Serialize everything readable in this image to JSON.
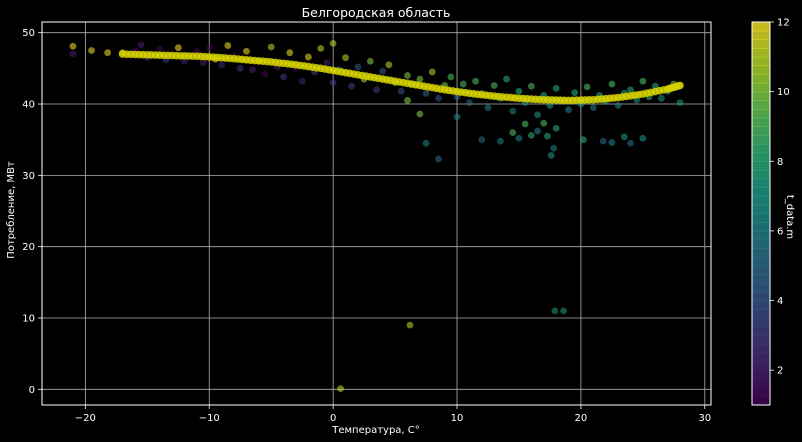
{
  "chart_data": {
    "type": "scatter",
    "title": "Белгородская область",
    "xlabel": "Температура, C°",
    "ylabel": "Потребление, МВт",
    "xlim": [
      -23.5,
      30.5
    ],
    "ylim": [
      -2.2,
      51.5
    ],
    "xticks": [
      -20,
      -10,
      0,
      10,
      20,
      30
    ],
    "xtick_labels": [
      "−20",
      "−10",
      "0",
      "10",
      "20",
      "30"
    ],
    "yticks": [
      0,
      10,
      20,
      30,
      40,
      50
    ],
    "ytick_labels": [
      "0",
      "10",
      "20",
      "30",
      "40",
      "50"
    ],
    "grid": true,
    "colorbar": {
      "label": "t_data.m",
      "range": [
        1,
        12
      ],
      "ticks": [
        2,
        4,
        6,
        8,
        10,
        12
      ],
      "tick_labels": [
        "2",
        "4",
        "6",
        "8",
        "10",
        "12"
      ],
      "colormap": "viridis"
    },
    "series": [
      {
        "kind": "observed",
        "points": [
          {
            "x": -21,
            "y": 48.1,
            "m": 12
          },
          {
            "x": -21,
            "y": 47.0,
            "m": 2
          },
          {
            "x": -19.5,
            "y": 47.5,
            "m": 12
          },
          {
            "x": -18.2,
            "y": 47.2,
            "m": 12
          },
          {
            "x": -17,
            "y": 47.2,
            "m": 12
          },
          {
            "x": -16,
            "y": 47.5,
            "m": 1
          },
          {
            "x": -15.5,
            "y": 48.3,
            "m": 2
          },
          {
            "x": -15,
            "y": 46.5,
            "m": 2
          },
          {
            "x": -14,
            "y": 47.8,
            "m": 1
          },
          {
            "x": -13.5,
            "y": 46.2,
            "m": 3
          },
          {
            "x": -12.5,
            "y": 47.9,
            "m": 12
          },
          {
            "x": -12,
            "y": 46.0,
            "m": 2
          },
          {
            "x": -11,
            "y": 47.4,
            "m": 1
          },
          {
            "x": -10.5,
            "y": 45.8,
            "m": 2
          },
          {
            "x": -10,
            "y": 47.9,
            "m": 1
          },
          {
            "x": -9.5,
            "y": 46.3,
            "m": 12
          },
          {
            "x": -9,
            "y": 45.5,
            "m": 2
          },
          {
            "x": -8.5,
            "y": 48.2,
            "m": 12
          },
          {
            "x": -8,
            "y": 46.8,
            "m": 1
          },
          {
            "x": -7.5,
            "y": 45.0,
            "m": 3
          },
          {
            "x": -7,
            "y": 47.4,
            "m": 12
          },
          {
            "x": -6.5,
            "y": 44.8,
            "m": 2
          },
          {
            "x": -6,
            "y": 46.0,
            "m": 12
          },
          {
            "x": -5.5,
            "y": 44.2,
            "m": 1
          },
          {
            "x": -5,
            "y": 48.0,
            "m": 11
          },
          {
            "x": -4.5,
            "y": 45.2,
            "m": 2
          },
          {
            "x": -4,
            "y": 43.8,
            "m": 3
          },
          {
            "x": -3.5,
            "y": 47.2,
            "m": 12
          },
          {
            "x": -3,
            "y": 45.0,
            "m": 1
          },
          {
            "x": -2.5,
            "y": 43.2,
            "m": 2
          },
          {
            "x": -2,
            "y": 46.6,
            "m": 12
          },
          {
            "x": -1.5,
            "y": 44.5,
            "m": 3
          },
          {
            "x": -1,
            "y": 47.8,
            "m": 11
          },
          {
            "x": -0.5,
            "y": 45.8,
            "m": 2
          },
          {
            "x": 0,
            "y": 48.5,
            "m": 11
          },
          {
            "x": 0,
            "y": 43.0,
            "m": 3
          },
          {
            "x": 0.5,
            "y": 44.8,
            "m": 4
          },
          {
            "x": 1,
            "y": 46.5,
            "m": 11
          },
          {
            "x": 1.5,
            "y": 42.5,
            "m": 3
          },
          {
            "x": 2,
            "y": 45.2,
            "m": 4
          },
          {
            "x": 2.5,
            "y": 43.5,
            "m": 11
          },
          {
            "x": 3,
            "y": 46.0,
            "m": 10
          },
          {
            "x": 3.5,
            "y": 42.0,
            "m": 3
          },
          {
            "x": 4,
            "y": 44.6,
            "m": 4
          },
          {
            "x": 4.5,
            "y": 45.5,
            "m": 11
          },
          {
            "x": 5,
            "y": 43.0,
            "m": 10
          },
          {
            "x": 5.5,
            "y": 41.8,
            "m": 4
          },
          {
            "x": 6,
            "y": 44.0,
            "m": 10
          },
          {
            "x": 6.5,
            "y": 42.8,
            "m": 5
          },
          {
            "x": 7,
            "y": 43.5,
            "m": 10
          },
          {
            "x": 7.5,
            "y": 41.5,
            "m": 5
          },
          {
            "x": 8,
            "y": 44.5,
            "m": 11
          },
          {
            "x": 8.5,
            "y": 40.8,
            "m": 4
          },
          {
            "x": 9,
            "y": 42.6,
            "m": 10
          },
          {
            "x": 9.5,
            "y": 43.8,
            "m": 9
          },
          {
            "x": 10,
            "y": 41.0,
            "m": 5
          },
          {
            "x": 10.5,
            "y": 42.8,
            "m": 9
          },
          {
            "x": 11,
            "y": 40.2,
            "m": 5
          },
          {
            "x": 11.5,
            "y": 43.2,
            "m": 9
          },
          {
            "x": 12,
            "y": 41.5,
            "m": 6
          },
          {
            "x": 12.5,
            "y": 39.5,
            "m": 6
          },
          {
            "x": 13,
            "y": 42.6,
            "m": 9
          },
          {
            "x": 13.5,
            "y": 40.8,
            "m": 7
          },
          {
            "x": 14,
            "y": 43.5,
            "m": 8
          },
          {
            "x": 14.5,
            "y": 39.0,
            "m": 6
          },
          {
            "x": 15,
            "y": 41.8,
            "m": 8
          },
          {
            "x": 15.5,
            "y": 40.2,
            "m": 7
          },
          {
            "x": 16,
            "y": 42.5,
            "m": 9
          },
          {
            "x": 16.5,
            "y": 38.5,
            "m": 7
          },
          {
            "x": 17,
            "y": 41.2,
            "m": 8
          },
          {
            "x": 17.5,
            "y": 39.8,
            "m": 7
          },
          {
            "x": 18,
            "y": 42.2,
            "m": 8
          },
          {
            "x": 18.5,
            "y": 40.5,
            "m": 7
          },
          {
            "x": 19,
            "y": 39.2,
            "m": 6
          },
          {
            "x": 19.5,
            "y": 41.6,
            "m": 8
          },
          {
            "x": 20,
            "y": 40.0,
            "m": 7
          },
          {
            "x": 20.5,
            "y": 42.4,
            "m": 9
          },
          {
            "x": 21,
            "y": 39.5,
            "m": 6
          },
          {
            "x": 21.5,
            "y": 41.2,
            "m": 8
          },
          {
            "x": 22,
            "y": 40.4,
            "m": 7
          },
          {
            "x": 22.5,
            "y": 42.8,
            "m": 9
          },
          {
            "x": 23,
            "y": 39.8,
            "m": 6
          },
          {
            "x": 23.5,
            "y": 41.5,
            "m": 8
          },
          {
            "x": 24,
            "y": 42.0,
            "m": 8
          },
          {
            "x": 24.5,
            "y": 40.6,
            "m": 7
          },
          {
            "x": 25,
            "y": 43.2,
            "m": 9
          },
          {
            "x": 25.5,
            "y": 41.0,
            "m": 8
          },
          {
            "x": 26,
            "y": 42.5,
            "m": 8
          },
          {
            "x": 26.5,
            "y": 40.8,
            "m": 7
          },
          {
            "x": 27,
            "y": 41.8,
            "m": 8
          },
          {
            "x": 28,
            "y": 40.2,
            "m": 7
          },
          {
            "x": 27.5,
            "y": 42.8,
            "m": 10
          },
          {
            "x": 6,
            "y": 40.5,
            "m": 10
          },
          {
            "x": 7,
            "y": 38.6,
            "m": 10
          },
          {
            "x": 7.5,
            "y": 34.5,
            "m": 6
          },
          {
            "x": 8.5,
            "y": 32.3,
            "m": 5
          },
          {
            "x": 10,
            "y": 38.2,
            "m": 6
          },
          {
            "x": 12,
            "y": 35.0,
            "m": 5
          },
          {
            "x": 13.5,
            "y": 34.8,
            "m": 6
          },
          {
            "x": 14.5,
            "y": 36.0,
            "m": 9
          },
          {
            "x": 15,
            "y": 35.2,
            "m": 6
          },
          {
            "x": 15.5,
            "y": 37.2,
            "m": 9
          },
          {
            "x": 16,
            "y": 35.6,
            "m": 8
          },
          {
            "x": 16.5,
            "y": 36.2,
            "m": 6
          },
          {
            "x": 17,
            "y": 37.3,
            "m": 9
          },
          {
            "x": 17.3,
            "y": 35.5,
            "m": 8
          },
          {
            "x": 17.6,
            "y": 32.8,
            "m": 7
          },
          {
            "x": 17.8,
            "y": 33.8,
            "m": 6
          },
          {
            "x": 18,
            "y": 36.6,
            "m": 8
          },
          {
            "x": 20.2,
            "y": 35.0,
            "m": 8
          },
          {
            "x": 21.8,
            "y": 34.8,
            "m": 5
          },
          {
            "x": 22.5,
            "y": 34.6,
            "m": 6
          },
          {
            "x": 23.5,
            "y": 35.4,
            "m": 7
          },
          {
            "x": 24,
            "y": 34.5,
            "m": 5
          },
          {
            "x": 25,
            "y": 35.2,
            "m": 7
          },
          {
            "x": 17.9,
            "y": 11.0,
            "m": 7
          },
          {
            "x": 18.6,
            "y": 11.0,
            "m": 7
          },
          {
            "x": 6.2,
            "y": 9.0,
            "m": 11
          },
          {
            "x": 0.6,
            "y": 0.1,
            "m": 11
          }
        ]
      },
      {
        "kind": "fitted",
        "color": "#d5d100",
        "points": [
          {
            "x": -17,
            "y": 47.0
          },
          {
            "x": -15,
            "y": 46.9
          },
          {
            "x": -13,
            "y": 46.8
          },
          {
            "x": -11,
            "y": 46.7
          },
          {
            "x": -9,
            "y": 46.5
          },
          {
            "x": -7,
            "y": 46.2
          },
          {
            "x": -5,
            "y": 45.9
          },
          {
            "x": -3,
            "y": 45.5
          },
          {
            "x": -1,
            "y": 45.0
          },
          {
            "x": 1,
            "y": 44.4
          },
          {
            "x": 3,
            "y": 43.8
          },
          {
            "x": 5,
            "y": 43.2
          },
          {
            "x": 7,
            "y": 42.6
          },
          {
            "x": 9,
            "y": 42.0
          },
          {
            "x": 11,
            "y": 41.5
          },
          {
            "x": 13,
            "y": 41.1
          },
          {
            "x": 15,
            "y": 40.8
          },
          {
            "x": 17,
            "y": 40.6
          },
          {
            "x": 19,
            "y": 40.5
          },
          {
            "x": 21,
            "y": 40.6
          },
          {
            "x": 23,
            "y": 40.9
          },
          {
            "x": 25,
            "y": 41.4
          },
          {
            "x": 27,
            "y": 42.1
          },
          {
            "x": 28,
            "y": 42.6
          }
        ]
      }
    ]
  }
}
